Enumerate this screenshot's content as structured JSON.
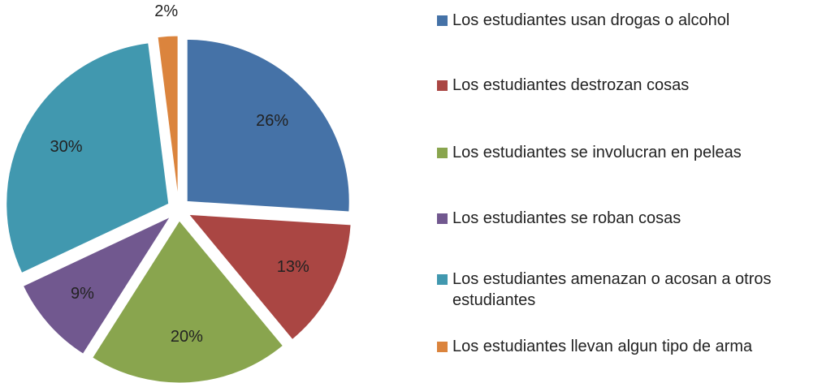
{
  "chart_data": {
    "type": "pie",
    "categories": [
      "Los estudiantes usan drogas o alcohol",
      "Los estudiantes destrozan cosas",
      "Los estudiantes se involucran en peleas",
      "Los estudiantes se roban cosas",
      "Los estudiantes amenazan o acosan a otros estudiantes",
      "Los estudiantes llevan algun tipo de arma"
    ],
    "values": [
      26,
      13,
      20,
      9,
      30,
      2
    ],
    "value_labels": [
      "26%",
      "13%",
      "20%",
      "9%",
      "30%",
      "2%"
    ],
    "colors": [
      "#4572a7",
      "#aa4643",
      "#89a54e",
      "#71588f",
      "#4198af",
      "#db843d"
    ],
    "legend": "right"
  }
}
